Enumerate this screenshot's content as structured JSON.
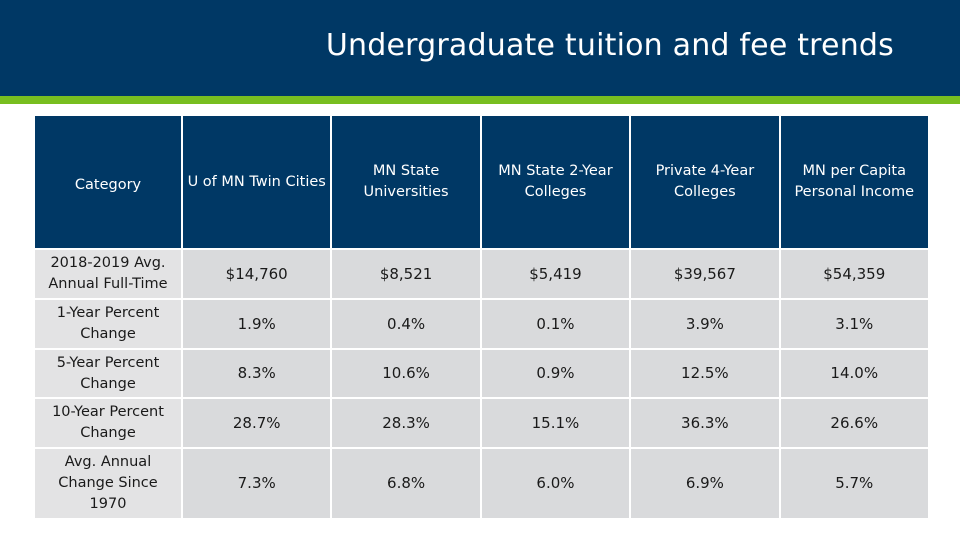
{
  "slide": {
    "title": "Undergraduate tuition and fee trends",
    "colors": {
      "header_bg": "#003865",
      "accent_bar": "#78be20",
      "row_bg": "#d9dadc"
    }
  },
  "table": {
    "headers": [
      "Category",
      "U of MN Twin Cities",
      "MN State Universities",
      "MN State 2-Year Colleges",
      "Private 4-Year Colleges",
      "MN per Capita Personal Income"
    ],
    "rows": [
      {
        "label": "2018-2019 Avg. Annual Full-Time",
        "values": [
          "$14,760",
          "$8,521",
          "$5,419",
          "$39,567",
          "$54,359"
        ]
      },
      {
        "label": "1-Year Percent Change",
        "values": [
          "1.9%",
          "0.4%",
          "0.1%",
          "3.9%",
          "3.1%"
        ]
      },
      {
        "label": "5-Year Percent Change",
        "values": [
          "8.3%",
          "10.6%",
          "0.9%",
          "12.5%",
          "14.0%"
        ]
      },
      {
        "label": "10-Year Percent Change",
        "values": [
          "28.7%",
          "28.3%",
          "15.1%",
          "36.3%",
          "26.6%"
        ]
      },
      {
        "label": "Avg. Annual Change Since 1970",
        "values": [
          "7.3%",
          "6.8%",
          "6.0%",
          "6.9%",
          "5.7%"
        ]
      }
    ]
  }
}
